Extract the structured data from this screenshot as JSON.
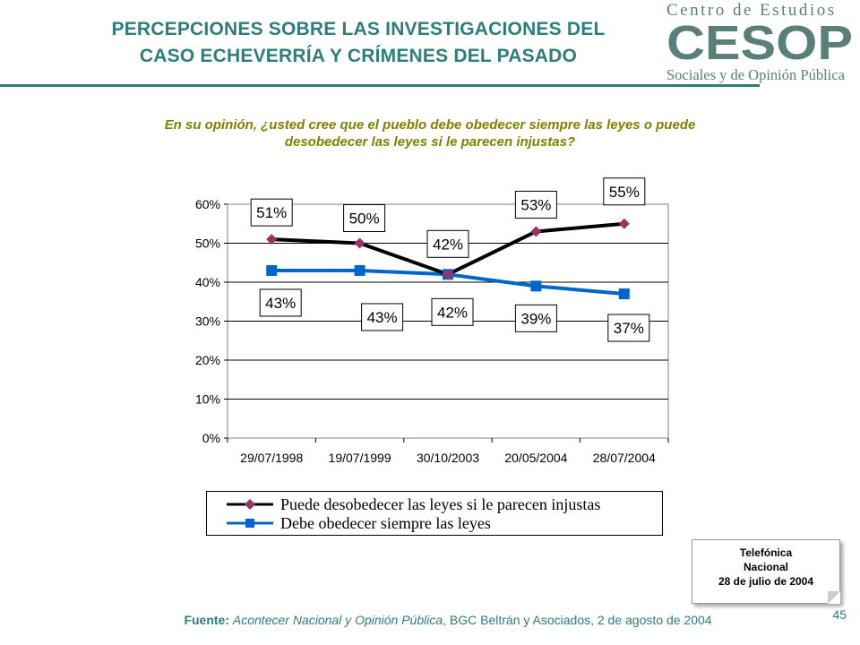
{
  "header": {
    "title_line1": "PERCEPCIONES SOBRE LAS INVESTIGACIONES DEL",
    "title_line2": "CASO ECHEVERRÍA Y CRÍMENES DEL PASADO"
  },
  "logo": {
    "top_text": "Centro de Estudios",
    "mark_text": "CESOP",
    "bottom_text": "Sociales y de Opinión Pública",
    "color": "#5a7f7a"
  },
  "question": {
    "line1": "En su opinión, ¿usted cree que el pueblo debe obedecer siempre las leyes o puede",
    "line2": "desobedecer las leyes si le parecen injustas?"
  },
  "chart_data": {
    "type": "line",
    "categories": [
      "29/07/1998",
      "19/07/1999",
      "30/10/2003",
      "20/05/2004",
      "28/07/2004"
    ],
    "series": [
      {
        "name": "Puede desobedecer las leyes si le parecen injustas",
        "values": [
          51,
          50,
          42,
          53,
          55
        ],
        "labels": [
          "51%",
          "50%",
          "42%",
          "53%",
          "55%"
        ],
        "color": "#000000",
        "marker": "diamond",
        "marker_color": "#993366"
      },
      {
        "name": "Debe obedecer siempre las leyes",
        "values": [
          43,
          43,
          42,
          39,
          37
        ],
        "labels": [
          "43%",
          "43%",
          "42%",
          "39%",
          "37%"
        ],
        "color": "#0066cc",
        "marker": "square",
        "marker_color": "#0066cc"
      }
    ],
    "ylim": [
      0,
      60
    ],
    "yticks": [
      "0%",
      "10%",
      "20%",
      "30%",
      "40%",
      "50%",
      "60%"
    ],
    "grid": true,
    "legend_position": "bottom"
  },
  "note": {
    "line1": "Telefónica",
    "line2": "Nacional",
    "line3": "28 de julio de 2004"
  },
  "footer": {
    "source_label": "Fuente:",
    "source_italic": "Acontecer Nacional y Opinión Pública",
    "source_rest": ", BGC Beltrán y Asociados, 2 de agosto de 2004",
    "page_number": "45"
  }
}
